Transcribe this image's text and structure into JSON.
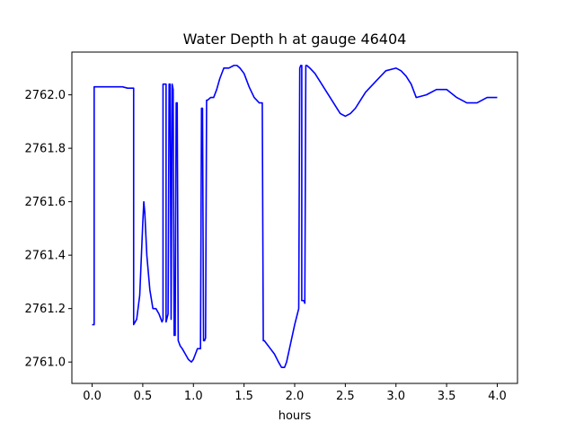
{
  "chart_data": {
    "type": "line",
    "title": "Water Depth h at gauge 46404",
    "xlabel": "hours",
    "ylabel": "",
    "xlim": [
      -0.2,
      4.2
    ],
    "ylim": [
      2760.92,
      2762.16
    ],
    "xticks": [
      0.0,
      0.5,
      1.0,
      1.5,
      2.0,
      2.5,
      3.0,
      3.5,
      4.0
    ],
    "xtick_labels": [
      "0.0",
      "0.5",
      "1.0",
      "1.5",
      "2.0",
      "2.5",
      "3.0",
      "3.5",
      "4.0"
    ],
    "yticks": [
      2761.0,
      2761.2,
      2761.4,
      2761.6,
      2761.8,
      2762.0
    ],
    "ytick_labels": [
      "2761.0",
      "2761.2",
      "2761.4",
      "2761.6",
      "2761.8",
      "2762.0"
    ],
    "grid": false,
    "series": [
      {
        "color": "#0000ff",
        "x": [
          0.0,
          0.02,
          0.02,
          0.05,
          0.1,
          0.2,
          0.3,
          0.35,
          0.4,
          0.41,
          0.41,
          0.44,
          0.47,
          0.5,
          0.51,
          0.52,
          0.54,
          0.57,
          0.6,
          0.63,
          0.66,
          0.68,
          0.69,
          0.7,
          0.7,
          0.72,
          0.73,
          0.73,
          0.75,
          0.76,
          0.77,
          0.78,
          0.78,
          0.79,
          0.8,
          0.81,
          0.82,
          0.83,
          0.84,
          0.85,
          0.86,
          0.87,
          0.87,
          0.89,
          0.92,
          0.95,
          0.98,
          1.0,
          1.02,
          1.04,
          1.07,
          1.08,
          1.09,
          1.1,
          1.11,
          1.12,
          1.13,
          1.14,
          1.17,
          1.2,
          1.23,
          1.26,
          1.3,
          1.35,
          1.4,
          1.43,
          1.46,
          1.5,
          1.55,
          1.6,
          1.65,
          1.68,
          1.69,
          1.7,
          1.72,
          1.76,
          1.8,
          1.84,
          1.87,
          1.9,
          1.92,
          1.96,
          2.0,
          2.04,
          2.05,
          2.06,
          2.07,
          2.07,
          2.09,
          2.1,
          2.11,
          2.12,
          2.15,
          2.2,
          2.25,
          2.3,
          2.35,
          2.4,
          2.45,
          2.5,
          2.55,
          2.6,
          2.65,
          2.7,
          2.8,
          2.9,
          3.0,
          3.05,
          3.1,
          3.15,
          3.2,
          3.3,
          3.4,
          3.5,
          3.6,
          3.65,
          3.7,
          3.8,
          3.9,
          4.0
        ],
        "y": [
          2761.14,
          2761.14,
          2762.03,
          2762.03,
          2762.03,
          2762.03,
          2762.03,
          2762.025,
          2762.025,
          2762.025,
          2761.14,
          2761.16,
          2761.25,
          2761.52,
          2761.6,
          2761.56,
          2761.4,
          2761.27,
          2761.2,
          2761.2,
          2761.18,
          2761.16,
          2761.15,
          2761.16,
          2762.04,
          2762.04,
          2762.04,
          2761.15,
          2761.18,
          2762.04,
          2762.04,
          2761.16,
          2761.16,
          2762.04,
          2762.02,
          2761.1,
          2761.1,
          2761.97,
          2761.97,
          2761.08,
          2761.07,
          2761.06,
          2761.06,
          2761.05,
          2761.03,
          2761.01,
          2761.0,
          2761.01,
          2761.03,
          2761.05,
          2761.05,
          2761.95,
          2761.95,
          2761.08,
          2761.08,
          2761.09,
          2761.98,
          2761.98,
          2761.99,
          2761.99,
          2762.02,
          2762.06,
          2762.1,
          2762.1,
          2762.11,
          2762.11,
          2762.1,
          2762.08,
          2762.03,
          2761.99,
          2761.97,
          2761.97,
          2761.08,
          2761.08,
          2761.07,
          2761.05,
          2761.03,
          2761.0,
          2760.98,
          2760.98,
          2761.0,
          2761.07,
          2761.14,
          2761.2,
          2762.1,
          2762.11,
          2762.11,
          2761.23,
          2761.23,
          2761.22,
          2762.11,
          2762.11,
          2762.1,
          2762.08,
          2762.05,
          2762.02,
          2761.99,
          2761.96,
          2761.93,
          2761.92,
          2761.93,
          2761.95,
          2761.98,
          2762.01,
          2762.05,
          2762.09,
          2762.1,
          2762.09,
          2762.07,
          2762.04,
          2761.99,
          2762.0,
          2762.02,
          2762.02,
          2761.99,
          2761.98,
          2761.97,
          2761.97,
          2761.99,
          2761.99
        ]
      }
    ]
  }
}
